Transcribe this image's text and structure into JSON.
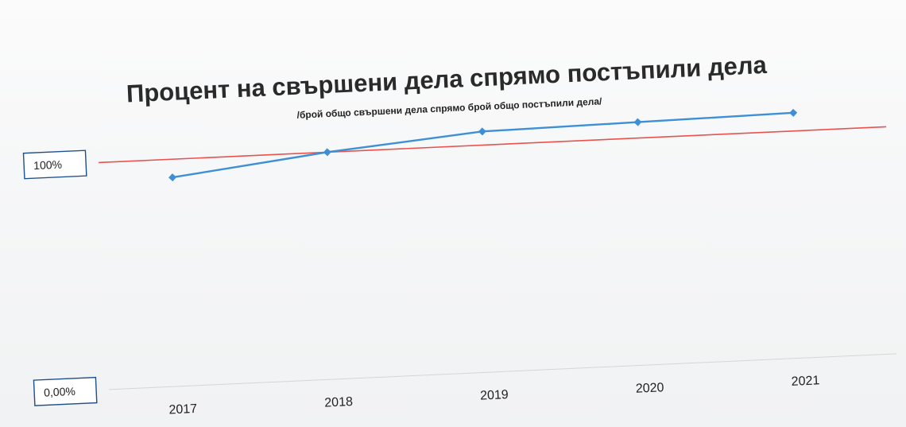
{
  "chart_data": {
    "type": "line",
    "title": "Процент на свършени дела спрямо постъпили дела",
    "subtitle": "/брой общо свършени дела спрямо брой общо постъпили дела/",
    "xlabel": "",
    "ylabel": "",
    "categories": [
      "2017",
      "2018",
      "2019",
      "2020",
      "2021"
    ],
    "series": [
      {
        "values": [
          0.92,
          1.0,
          1.06,
          1.07,
          1.08
        ],
        "color": "#3d8fd6",
        "marker": "diamond"
      }
    ],
    "reference_line": {
      "value": 1.0,
      "color": "#e8534f"
    },
    "y_tick_labels": [
      "0,00%",
      "100%"
    ],
    "ylim": [
      0,
      1.12
    ],
    "grid": false,
    "legend": "none"
  }
}
